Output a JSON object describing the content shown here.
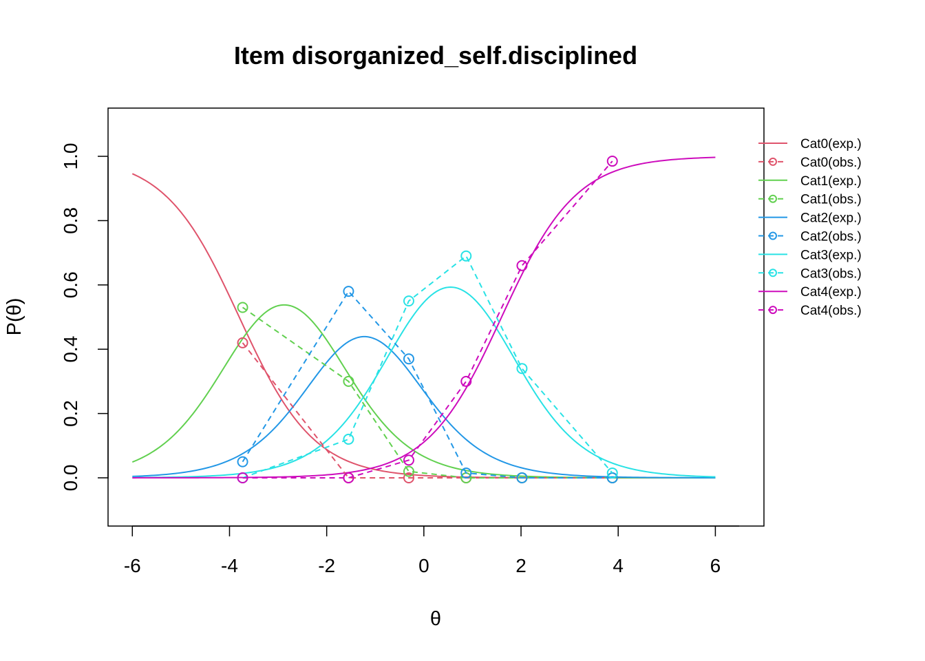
{
  "chart_data": {
    "type": "line",
    "title": "Item disorganized_self.disciplined",
    "xlabel": "θ",
    "ylabel": "P(θ)",
    "xlim": [
      -6.5,
      7.0
    ],
    "ylim": [
      -0.15,
      1.15
    ],
    "x_ticks": [
      -6,
      -4,
      -2,
      0,
      2,
      4,
      6
    ],
    "x_tick_labels": [
      "-6",
      "-4",
      "-2",
      "0",
      "2",
      "4",
      "6"
    ],
    "y_ticks": [
      0.0,
      0.2,
      0.4,
      0.6,
      0.8,
      1.0
    ],
    "y_tick_labels": [
      "0.0",
      "0.2",
      "0.4",
      "0.6",
      "0.8",
      "1.0"
    ],
    "grid": false,
    "legend_position": "right",
    "obs_x": [
      -3.73,
      -1.55,
      -0.31,
      0.87,
      2.02,
      3.88
    ],
    "series": [
      {
        "name": "Cat0(exp.)",
        "kind": "expected",
        "category": 0,
        "color": "#DF536B"
      },
      {
        "name": "Cat0(obs.)",
        "kind": "observed",
        "color": "#DF536B",
        "y": [
          0.42,
          0.0,
          0.0,
          0.0,
          0.0,
          0.0
        ]
      },
      {
        "name": "Cat1(exp.)",
        "kind": "expected",
        "category": 1,
        "color": "#61D04F"
      },
      {
        "name": "Cat1(obs.)",
        "kind": "observed",
        "color": "#61D04F",
        "y": [
          0.53,
          0.3,
          0.02,
          0.0,
          0.0,
          0.0
        ]
      },
      {
        "name": "Cat2(exp.)",
        "kind": "expected",
        "category": 2,
        "color": "#2297E6"
      },
      {
        "name": "Cat2(obs.)",
        "kind": "observed",
        "color": "#2297E6",
        "y": [
          0.05,
          0.58,
          0.37,
          0.015,
          0.0,
          0.0
        ]
      },
      {
        "name": "Cat3(exp.)",
        "kind": "expected",
        "category": 3,
        "color": "#28E2E5"
      },
      {
        "name": "Cat3(obs.)",
        "kind": "observed",
        "color": "#28E2E5",
        "y": [
          0.0,
          0.12,
          0.55,
          0.69,
          0.34,
          0.015
        ]
      },
      {
        "name": "Cat4(exp.)",
        "kind": "expected",
        "category": 4,
        "color": "#CD0BBC"
      },
      {
        "name": "Cat4(obs.)",
        "kind": "observed",
        "color": "#CD0BBC",
        "y": [
          0.0,
          0.0,
          0.055,
          0.3,
          0.66,
          0.985
        ]
      }
    ],
    "model": {
      "x_range": [
        -6,
        6
      ],
      "discrimination": 1.3,
      "thresholds": [
        -3.8,
        -1.95,
        -0.5,
        1.6
      ]
    }
  }
}
